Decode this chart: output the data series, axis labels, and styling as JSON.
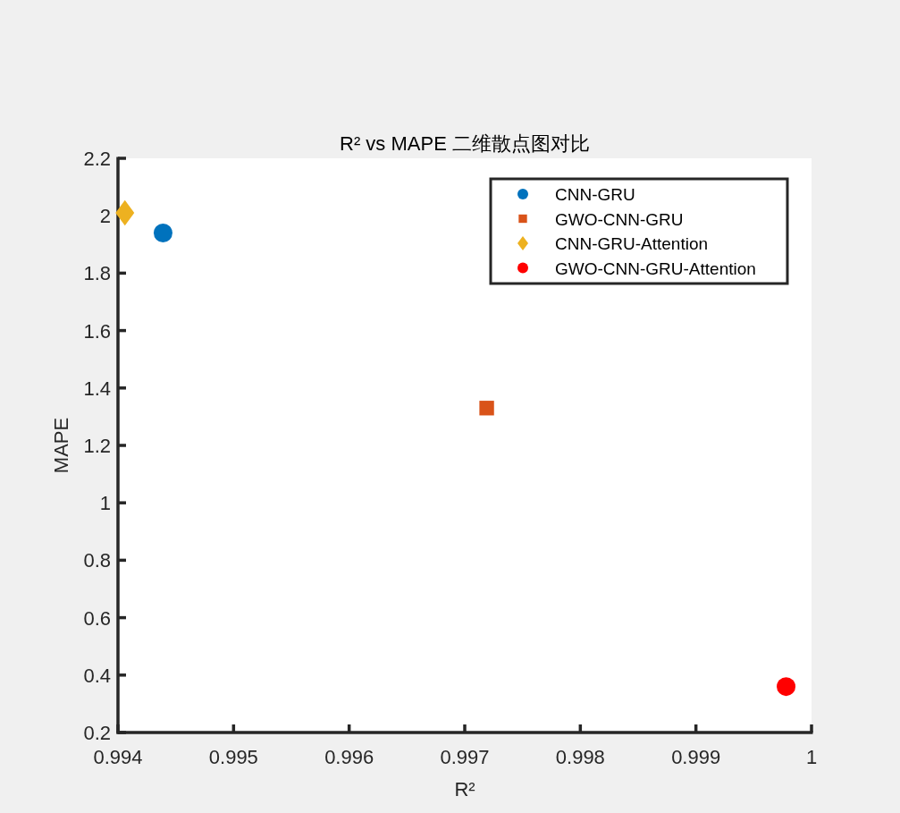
{
  "chart_data": {
    "type": "scatter",
    "title": "R² vs MAPE 二维散点图对比",
    "xlabel": "R²",
    "ylabel": "MAPE",
    "xlim": [
      0.994,
      1
    ],
    "xticks": [
      0.994,
      0.995,
      0.996,
      0.997,
      0.998,
      0.999,
      1
    ],
    "ylim": [
      0.2,
      2.2
    ],
    "yticks": [
      0.2,
      0.4,
      0.6,
      0.8,
      1,
      1.2,
      1.4,
      1.6,
      1.8,
      2,
      2.2
    ],
    "grid": false,
    "legend": "top right",
    "series": [
      {
        "name": "CNN-GRU",
        "color": "#0072bd",
        "marker": "circle",
        "x": [
          0.99439
        ],
        "values": [
          1.94
        ]
      },
      {
        "name": "GWO-CNN-GRU",
        "color": "#d95319",
        "marker": "square",
        "x": [
          0.99719
        ],
        "values": [
          1.33
        ]
      },
      {
        "name": "CNN-GRU-Attention",
        "color": "#edb120",
        "marker": "diamond",
        "x": [
          0.99406
        ],
        "values": [
          2.01
        ]
      },
      {
        "name": "GWO-CNN-GRU-Attention",
        "color": "#ff0000",
        "marker": "circle",
        "x": [
          0.99978
        ],
        "values": [
          0.36
        ]
      }
    ]
  }
}
